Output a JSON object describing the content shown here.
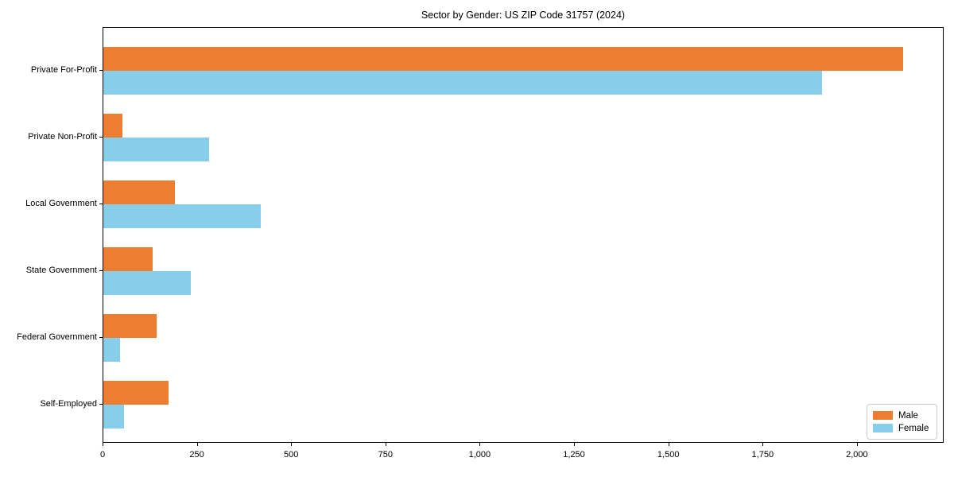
{
  "title": "Sector by Gender: US ZIP Code 31757 (2024)",
  "chart_data": {
    "type": "bar",
    "orientation": "horizontal",
    "title": "Sector by Gender: US ZIP Code 31757 (2024)",
    "xlabel": "",
    "ylabel": "",
    "categories": [
      "Private For-Profit",
      "Private Non-Profit",
      "Local Government",
      "State Government",
      "Federal Government",
      "Self-Employed"
    ],
    "series": [
      {
        "name": "Male",
        "color": "#ed7d31",
        "values": [
          2120,
          51,
          190,
          130,
          141,
          172
        ]
      },
      {
        "name": "Female",
        "color": "#87ceeb",
        "values": [
          1905,
          281,
          418,
          232,
          44,
          54
        ]
      }
    ],
    "xlim": [
      0,
      2230
    ],
    "x_ticks": [
      0,
      250,
      500,
      750,
      1000,
      1250,
      1500,
      1750,
      2000
    ],
    "x_tick_labels": [
      "0",
      "250",
      "500",
      "750",
      "1,000",
      "1,250",
      "1,500",
      "1,750",
      "2,000"
    ],
    "grid": false,
    "legend_position": "lower right"
  },
  "legend": {
    "items": [
      {
        "label": "Male",
        "color": "#ed7d31"
      },
      {
        "label": "Female",
        "color": "#87ceeb"
      }
    ]
  }
}
